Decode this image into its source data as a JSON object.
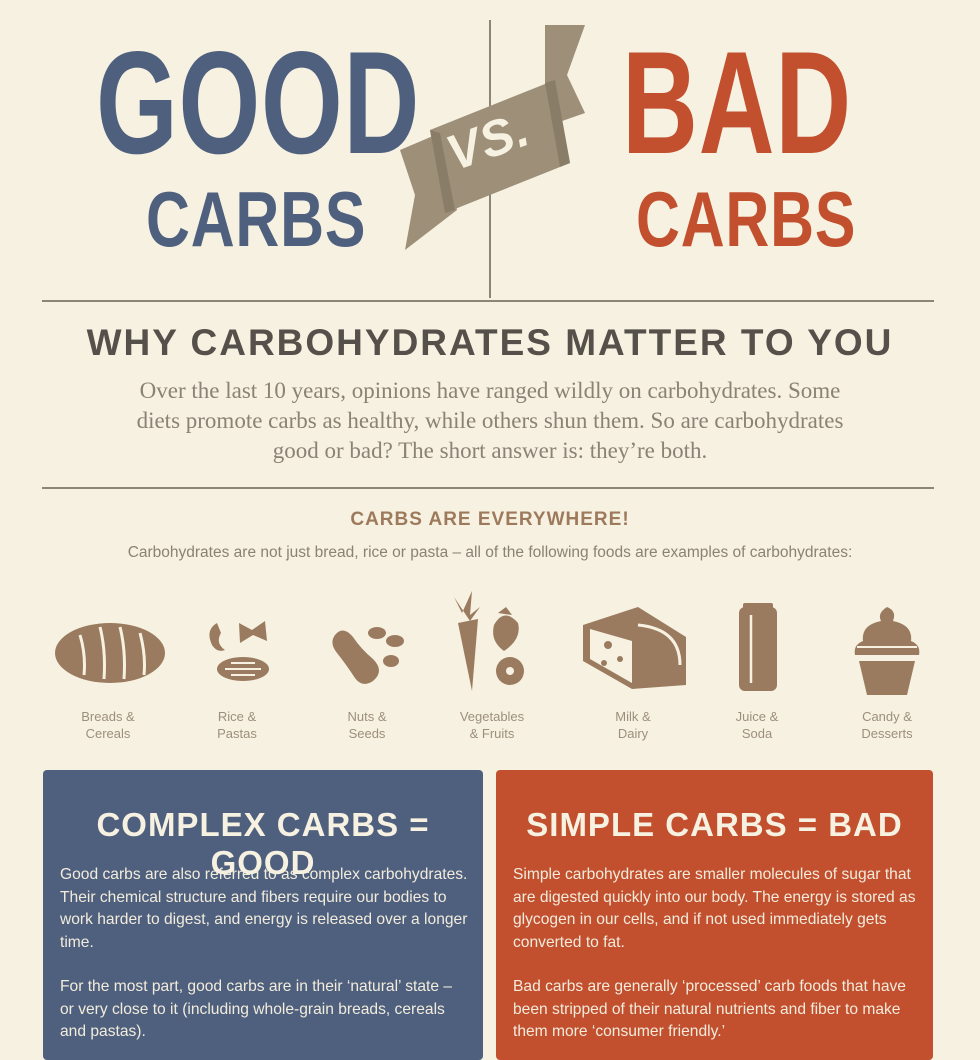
{
  "header": {
    "good_word": "GOOD",
    "good_carbs": "CARBS",
    "vs": "VS.",
    "bad_word": "BAD",
    "bad_carbs": "CARBS"
  },
  "why": {
    "title": "WHY CARBOHYDRATES MATTER TO YOU",
    "body": "Over the last 10 years, opinions have ranged wildly on carbohydrates. Some diets promote carbs as healthy, while others shun them. So are carbohydrates good or bad? The short answer is: they’re both."
  },
  "everywhere": {
    "title": "CARBS ARE EVERYWHERE!",
    "subtitle": "Carbohydrates are not just bread, rice or pasta – all of the following foods are examples of carbohydrates:",
    "foods": [
      {
        "label": "Breads &\nCereals",
        "icon": "bread-icon"
      },
      {
        "label": "Rice &\nPastas",
        "icon": "pasta-icon"
      },
      {
        "label": "Nuts &\nSeeds",
        "icon": "nuts-icon"
      },
      {
        "label": "Vegetables\n& Fruits",
        "icon": "carrot-strawberry-icon"
      },
      {
        "label": "Milk &\nDairy",
        "icon": "cheese-icon"
      },
      {
        "label": "Juice &\nSoda",
        "icon": "can-icon"
      },
      {
        "label": "Candy &\nDesserts",
        "icon": "cupcake-icon"
      }
    ]
  },
  "panels": {
    "good": {
      "title": "COMPLEX CARBS = GOOD",
      "p1": "Good carbs are also referred to as complex carbohydrates. Their chemical structure and fibers require our bodies to work harder to digest, and energy is released over a longer time.",
      "p2": "For the most part, good carbs are in their ‘natural’ state – or very close to it (including whole-grain breads, cereals and pastas)."
    },
    "bad": {
      "title": "SIMPLE CARBS = BAD",
      "p1": "Simple carbohydrates are smaller molecules of sugar that are digested quickly into our body. The energy is stored as glycogen in our cells, and if not used immediately gets converted to fat.",
      "p2": "Bad carbs are generally ‘processed’ carb foods that have been stripped of their natural nutrients and fiber to make them more ‘consumer friendly.’"
    }
  },
  "colors": {
    "good": "#4f607e",
    "bad": "#c2502f",
    "icon": "#9b7b5f",
    "background": "#f6f1e1"
  }
}
